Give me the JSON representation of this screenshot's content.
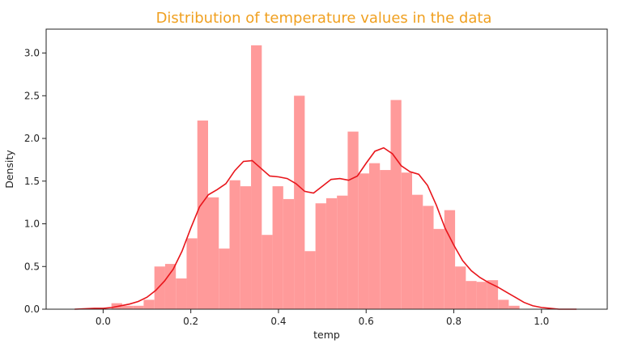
{
  "chart_data": {
    "type": "bar",
    "title": "Distribution of temperature values in the data",
    "xlabel": "temp",
    "ylabel": "Density",
    "xlim": [
      -0.13,
      1.15
    ],
    "ylim": [
      0,
      3.28
    ],
    "xticks": [
      "0.0",
      "0.2",
      "0.4",
      "0.6",
      "0.8",
      "1.0"
    ],
    "yticks": [
      "0.0",
      "0.5",
      "1.0",
      "1.5",
      "2.0",
      "2.5",
      "3.0"
    ],
    "grid": false,
    "colors": {
      "title": "#f0a020",
      "bars": "#ff9a9a",
      "kde_line": "#e8151b",
      "frame": "#222222"
    },
    "histogram": {
      "bin_width": 0.0245,
      "bins": [
        {
          "x0": 0.0189,
          "density": 0.07
        },
        {
          "x0": 0.0434,
          "density": 0.04
        },
        {
          "x0": 0.0679,
          "density": 0.04
        },
        {
          "x0": 0.0924,
          "density": 0.11
        },
        {
          "x0": 0.1169,
          "density": 0.5
        },
        {
          "x0": 0.1414,
          "density": 0.53
        },
        {
          "x0": 0.1659,
          "density": 0.36
        },
        {
          "x0": 0.1904,
          "density": 0.83
        },
        {
          "x0": 0.2149,
          "density": 2.21
        },
        {
          "x0": 0.2394,
          "density": 1.31
        },
        {
          "x0": 0.2639,
          "density": 0.71
        },
        {
          "x0": 0.2884,
          "density": 1.51
        },
        {
          "x0": 0.3129,
          "density": 1.44
        },
        {
          "x0": 0.3374,
          "density": 3.09
        },
        {
          "x0": 0.3619,
          "density": 0.87
        },
        {
          "x0": 0.3864,
          "density": 1.44
        },
        {
          "x0": 0.4109,
          "density": 1.29
        },
        {
          "x0": 0.4354,
          "density": 2.5
        },
        {
          "x0": 0.4599,
          "density": 0.68
        },
        {
          "x0": 0.4844,
          "density": 1.24
        },
        {
          "x0": 0.5089,
          "density": 1.3
        },
        {
          "x0": 0.5334,
          "density": 1.33
        },
        {
          "x0": 0.5579,
          "density": 2.08
        },
        {
          "x0": 0.5824,
          "density": 1.59
        },
        {
          "x0": 0.6069,
          "density": 1.71
        },
        {
          "x0": 0.6314,
          "density": 1.63
        },
        {
          "x0": 0.6559,
          "density": 2.45
        },
        {
          "x0": 0.6804,
          "density": 1.6
        },
        {
          "x0": 0.7049,
          "density": 1.34
        },
        {
          "x0": 0.7294,
          "density": 1.21
        },
        {
          "x0": 0.7539,
          "density": 0.94
        },
        {
          "x0": 0.7784,
          "density": 1.16
        },
        {
          "x0": 0.8029,
          "density": 0.5
        },
        {
          "x0": 0.8274,
          "density": 0.33
        },
        {
          "x0": 0.8519,
          "density": 0.32
        },
        {
          "x0": 0.8764,
          "density": 0.34
        },
        {
          "x0": 0.9009,
          "density": 0.11
        },
        {
          "x0": 0.9254,
          "density": 0.04
        }
      ]
    },
    "kde": {
      "x": [
        -0.065,
        -0.02,
        0.0,
        0.02,
        0.04,
        0.06,
        0.08,
        0.1,
        0.12,
        0.14,
        0.16,
        0.18,
        0.2,
        0.22,
        0.24,
        0.26,
        0.28,
        0.3,
        0.32,
        0.34,
        0.36,
        0.38,
        0.4,
        0.42,
        0.44,
        0.46,
        0.48,
        0.5,
        0.52,
        0.54,
        0.56,
        0.58,
        0.6,
        0.62,
        0.64,
        0.66,
        0.68,
        0.7,
        0.72,
        0.74,
        0.76,
        0.78,
        0.8,
        0.82,
        0.84,
        0.86,
        0.88,
        0.9,
        0.92,
        0.94,
        0.96,
        0.98,
        1.0,
        1.02,
        1.04,
        1.08
      ],
      "y": [
        0.0,
        0.01,
        0.01,
        0.02,
        0.04,
        0.06,
        0.09,
        0.14,
        0.22,
        0.33,
        0.47,
        0.68,
        0.95,
        1.2,
        1.34,
        1.4,
        1.47,
        1.62,
        1.73,
        1.74,
        1.65,
        1.56,
        1.55,
        1.53,
        1.47,
        1.38,
        1.36,
        1.44,
        1.52,
        1.53,
        1.51,
        1.56,
        1.71,
        1.85,
        1.89,
        1.82,
        1.68,
        1.61,
        1.58,
        1.45,
        1.22,
        0.95,
        0.75,
        0.57,
        0.45,
        0.37,
        0.31,
        0.26,
        0.2,
        0.14,
        0.08,
        0.04,
        0.02,
        0.01,
        0.0,
        0.0
      ]
    }
  }
}
